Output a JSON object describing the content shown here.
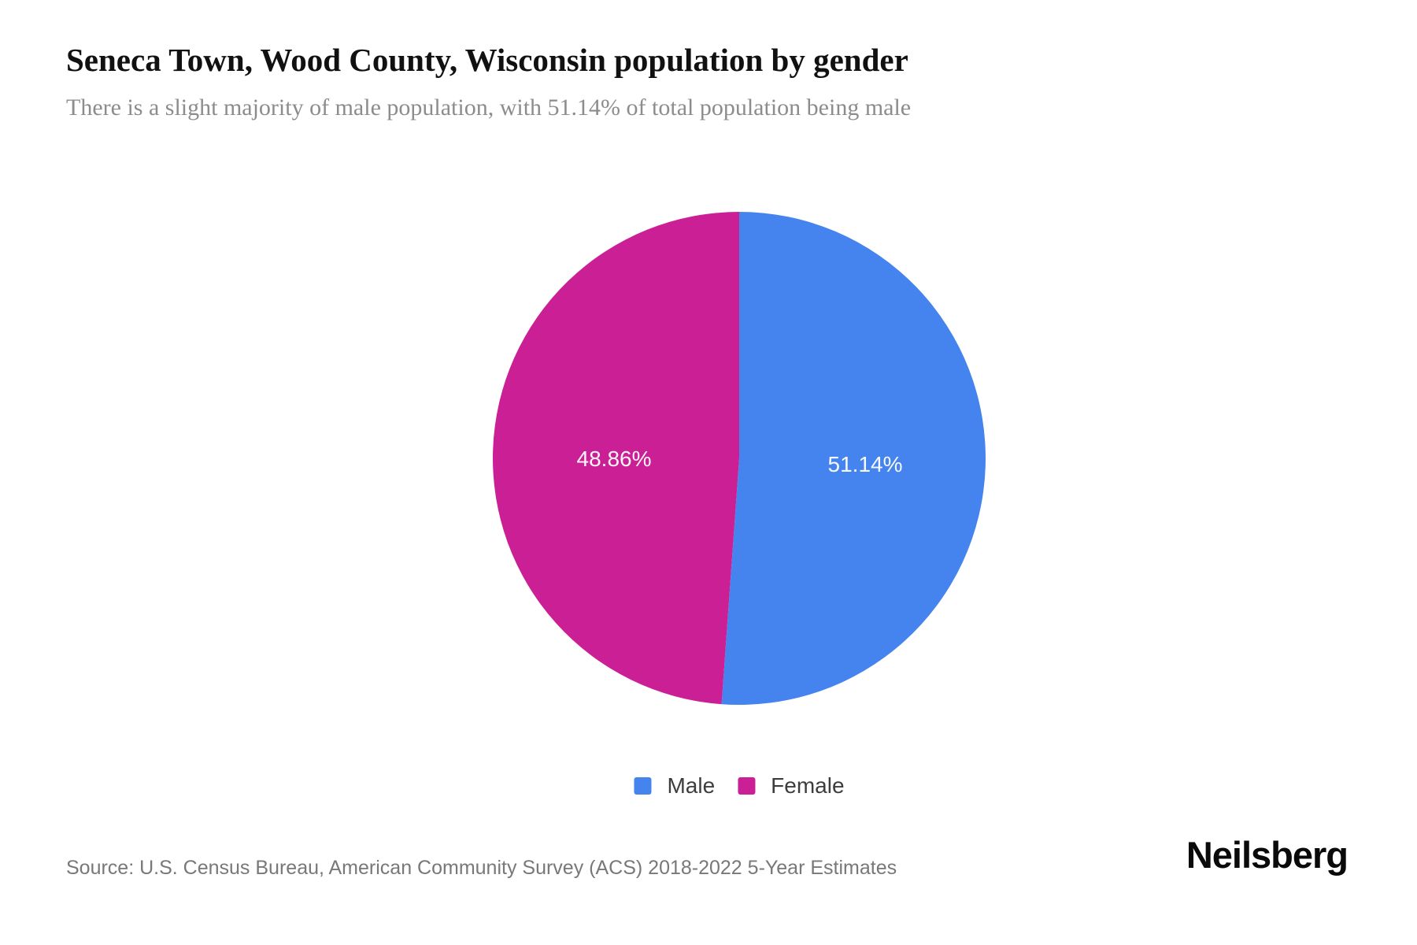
{
  "header": {
    "title": "Seneca Town, Wood County, Wisconsin population by gender",
    "subtitle": "There is a slight majority of male population, with 51.14% of total population being male"
  },
  "chart_data": {
    "type": "pie",
    "title": "Seneca Town, Wood County, Wisconsin population by gender",
    "start_angle_deg": 0,
    "direction": "clockwise",
    "legend_position": "bottom",
    "label_color": "#ffffff",
    "series": [
      {
        "name": "Male",
        "value": 51.14,
        "label": "51.14%",
        "color": "#4584EF"
      },
      {
        "name": "Female",
        "value": 48.86,
        "label": "48.86%",
        "color": "#CB1F96"
      }
    ]
  },
  "legend": {
    "items": [
      {
        "label": "Male",
        "color": "#4584EF"
      },
      {
        "label": "Female",
        "color": "#CB1F96"
      }
    ]
  },
  "footer": {
    "source": "Source: U.S. Census Bureau, American Community Survey (ACS) 2018-2022 5-Year Estimates",
    "brand": "Neilsberg"
  }
}
